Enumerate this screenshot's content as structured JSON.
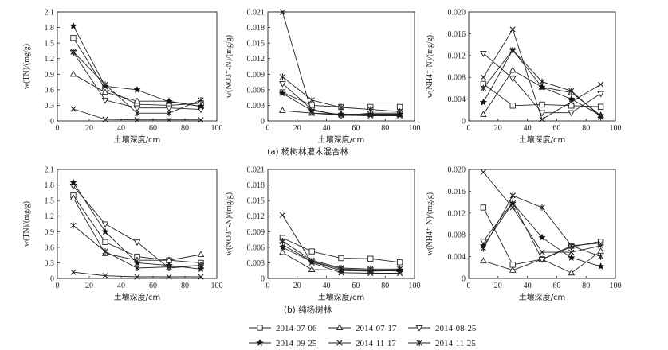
{
  "captions": [
    "(a) 杨树林灌木混合林",
    "(b) 纯杨树林"
  ],
  "legend": [
    {
      "name": "2014-07-06",
      "marker": "square"
    },
    {
      "name": "2014-07-17",
      "marker": "triangle-up"
    },
    {
      "name": "2014-08-25",
      "marker": "triangle-down"
    },
    {
      "name": "2014-09-25",
      "marker": "star"
    },
    {
      "name": "2014-11-17",
      "marker": "cross"
    },
    {
      "name": "2014-11-25",
      "marker": "asterisk"
    }
  ],
  "chart_data": [
    {
      "type": "line",
      "panel": "a",
      "xlabel": "土壤深度/cm",
      "ylabel": "w(TN)/(mg/g)",
      "xlim": [
        0,
        100
      ],
      "ylim": [
        0,
        2.1
      ],
      "xticks": [
        "0",
        "20",
        "40",
        "60",
        "80",
        "100"
      ],
      "yticks": [
        "0",
        "0.3",
        "0.6",
        "0.9",
        "1.2",
        "1.5",
        "1.8",
        "2.1"
      ],
      "x": [
        10,
        30,
        50,
        70,
        90
      ],
      "series": [
        {
          "name": "2014-07-06",
          "values": [
            1.6,
            0.62,
            0.32,
            0.3,
            0.34
          ]
        },
        {
          "name": "2014-07-17",
          "values": [
            0.9,
            0.55,
            0.38,
            0.38,
            0.28
          ]
        },
        {
          "name": "2014-08-25",
          "values": [
            1.32,
            0.4,
            0.25,
            0.25,
            0.22
          ]
        },
        {
          "name": "2014-09-25",
          "values": [
            1.83,
            0.67,
            0.6,
            0.37,
            0.28
          ]
        },
        {
          "name": "2014-11-17",
          "values": [
            0.23,
            0.03,
            0.02,
            0.02,
            0.02
          ]
        },
        {
          "name": "2014-11-25",
          "values": [
            1.33,
            0.7,
            0.15,
            0.15,
            0.4
          ]
        }
      ]
    },
    {
      "type": "line",
      "panel": "a",
      "xlabel": "土壤深度/cm",
      "ylabel": "w(NO3⁻-N)/(mg/g)",
      "xlim": [
        0,
        100
      ],
      "ylim": [
        0,
        0.021
      ],
      "xticks": [
        "0",
        "20",
        "40",
        "60",
        "80",
        "100"
      ],
      "yticks": [
        "0",
        "0.003",
        "0.006",
        "0.009",
        "0.012",
        "0.015",
        "0.018",
        "0.021"
      ],
      "x": [
        10,
        30,
        50,
        70,
        90
      ],
      "series": [
        {
          "name": "2014-07-06",
          "values": [
            0.0055,
            0.003,
            0.0027,
            0.0027,
            0.0027
          ]
        },
        {
          "name": "2014-07-17",
          "values": [
            0.002,
            0.0015,
            0.0013,
            0.0013,
            0.0012
          ]
        },
        {
          "name": "2014-08-25",
          "values": [
            0.0072,
            0.0022,
            0.001,
            0.0015,
            0.0015
          ]
        },
        {
          "name": "2014-09-25",
          "values": [
            0.0053,
            0.002,
            0.0012,
            0.0013,
            0.0013
          ]
        },
        {
          "name": "2014-11-17",
          "values": [
            0.021,
            0.0015,
            0.0011,
            0.001,
            0.001
          ]
        },
        {
          "name": "2014-11-25",
          "values": [
            0.0085,
            0.004,
            0.0026,
            0.0022,
            0.0018
          ]
        }
      ]
    },
    {
      "type": "line",
      "panel": "a",
      "xlabel": "土壤深度/cm",
      "ylabel": "w(NH4⁺-N)/(mg/g)",
      "xlim": [
        0,
        100
      ],
      "ylim": [
        0,
        0.02
      ],
      "xticks": [
        "0",
        "20",
        "40",
        "60",
        "80",
        "100"
      ],
      "yticks": [
        "0",
        "0.004",
        "0.008",
        "0.012",
        "0.016",
        "0.020"
      ],
      "x": [
        10,
        30,
        50,
        70,
        90
      ],
      "series": [
        {
          "name": "2014-07-06",
          "values": [
            0.0068,
            0.0028,
            0.003,
            0.0028,
            0.0026
          ]
        },
        {
          "name": "2014-07-17",
          "values": [
            0.0012,
            0.0093,
            0.0062,
            0.0052,
            0.001
          ]
        },
        {
          "name": "2014-08-25",
          "values": [
            0.0124,
            0.0078,
            0.0015,
            0.0015,
            0.005
          ]
        },
        {
          "name": "2014-09-25",
          "values": [
            0.0034,
            0.013,
            0.0062,
            0.004,
            0.001
          ]
        },
        {
          "name": "2014-11-17",
          "values": [
            0.008,
            0.0168,
            0.0003,
            0.0035,
            0.0067
          ]
        },
        {
          "name": "2014-11-25",
          "values": [
            0.006,
            0.013,
            0.0072,
            0.0055,
            0.0007
          ]
        }
      ]
    },
    {
      "type": "line",
      "panel": "b",
      "xlabel": "土壤深度/cm",
      "ylabel": "w(TN)/(mg/g)",
      "xlim": [
        0,
        100
      ],
      "ylim": [
        0,
        2.1
      ],
      "xticks": [
        "0",
        "20",
        "40",
        "60",
        "80",
        "100"
      ],
      "yticks": [
        "0",
        "0.3",
        "0.6",
        "0.9",
        "1.2",
        "1.5",
        "1.8",
        "2.1"
      ],
      "x": [
        10,
        30,
        50,
        70,
        90
      ],
      "series": [
        {
          "name": "2014-07-06",
          "values": [
            1.6,
            0.7,
            0.42,
            0.35,
            0.3
          ]
        },
        {
          "name": "2014-07-17",
          "values": [
            1.55,
            0.48,
            0.35,
            0.35,
            0.46
          ]
        },
        {
          "name": "2014-08-25",
          "values": [
            1.78,
            1.05,
            0.7,
            0.2,
            0.25
          ]
        },
        {
          "name": "2014-09-25",
          "values": [
            1.85,
            0.9,
            0.3,
            0.25,
            0.18
          ]
        },
        {
          "name": "2014-11-17",
          "values": [
            0.12,
            0.05,
            0.03,
            0.03,
            0.03
          ]
        },
        {
          "name": "2014-11-25",
          "values": [
            1.02,
            0.52,
            0.2,
            0.22,
            0.25
          ]
        }
      ]
    },
    {
      "type": "line",
      "panel": "b",
      "xlabel": "土壤深度/cm",
      "ylabel": "w(NO3⁻-N)/(mg/g)",
      "xlim": [
        0,
        100
      ],
      "ylim": [
        0,
        0.021
      ],
      "xticks": [
        "0",
        "20",
        "40",
        "60",
        "80",
        "100"
      ],
      "yticks": [
        "0",
        "0.003",
        "0.006",
        "0.009",
        "0.012",
        "0.015",
        "0.018",
        "0.021"
      ],
      "x": [
        10,
        30,
        50,
        70,
        90
      ],
      "series": [
        {
          "name": "2014-07-06",
          "values": [
            0.0078,
            0.0052,
            0.0039,
            0.0038,
            0.0031
          ]
        },
        {
          "name": "2014-07-17",
          "values": [
            0.005,
            0.0017,
            0.0016,
            0.0015,
            0.0017
          ]
        },
        {
          "name": "2014-08-25",
          "values": [
            0.0065,
            0.0033,
            0.0018,
            0.0016,
            0.0014
          ]
        },
        {
          "name": "2014-09-25",
          "values": [
            0.006,
            0.0032,
            0.0015,
            0.0014,
            0.0015
          ]
        },
        {
          "name": "2014-11-17",
          "values": [
            0.0122,
            0.003,
            0.0011,
            0.001,
            0.001
          ]
        },
        {
          "name": "2014-11-25",
          "values": [
            0.0072,
            0.0035,
            0.002,
            0.0018,
            0.0018
          ]
        }
      ]
    },
    {
      "type": "line",
      "panel": "b",
      "xlabel": "土壤深度/cm",
      "ylabel": "w(NH4⁺-N)/(mg/g)",
      "xlim": [
        0,
        100
      ],
      "ylim": [
        0,
        0.02
      ],
      "xticks": [
        "0",
        "20",
        "40",
        "60",
        "80",
        "100"
      ],
      "yticks": [
        "0",
        "0.004",
        "0.008",
        "0.012",
        "0.016",
        "0.020"
      ],
      "x": [
        10,
        30,
        50,
        70,
        90
      ],
      "series": [
        {
          "name": "2014-07-06",
          "values": [
            0.013,
            0.0025,
            0.0035,
            0.006,
            0.0065
          ]
        },
        {
          "name": "2014-07-17",
          "values": [
            0.0032,
            0.0015,
            0.0035,
            0.001,
            0.005
          ]
        },
        {
          "name": "2014-08-25",
          "values": [
            0.0068,
            0.014,
            0.0035,
            0.0058,
            0.0068
          ]
        },
        {
          "name": "2014-09-25",
          "values": [
            0.006,
            0.0138,
            0.0075,
            0.0038,
            0.0022
          ]
        },
        {
          "name": "2014-11-17",
          "values": [
            0.0195,
            0.013,
            0.0048,
            0.0048,
            0.006
          ]
        },
        {
          "name": "2014-11-25",
          "values": [
            0.0055,
            0.0152,
            0.013,
            0.006,
            0.004
          ]
        }
      ]
    }
  ]
}
